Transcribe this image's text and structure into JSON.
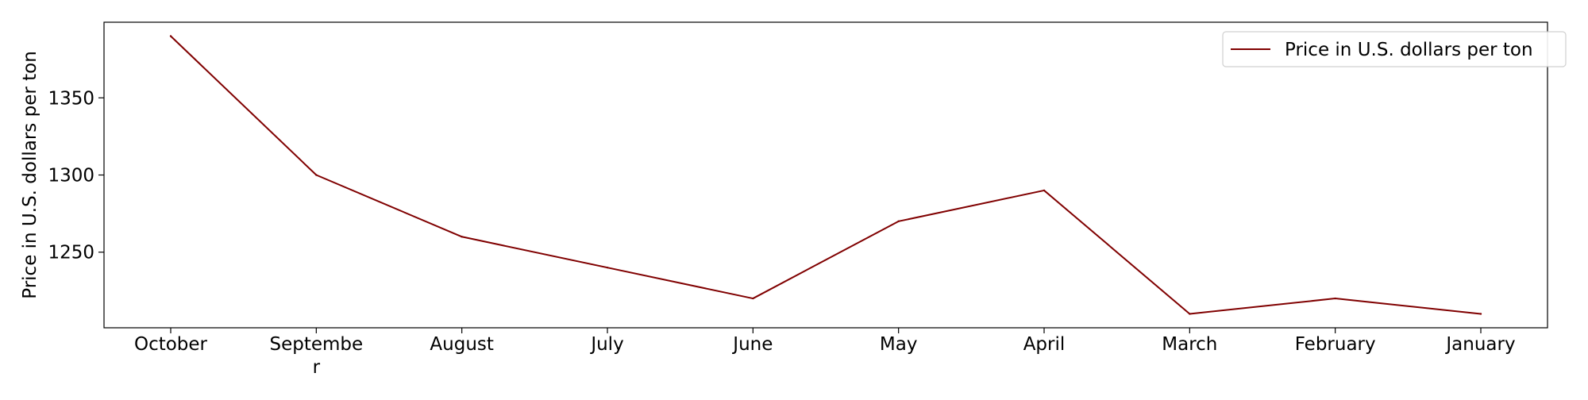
{
  "chart_data": {
    "type": "line",
    "title": "",
    "xlabel": "",
    "ylabel": "Price in U.S. dollars per ton",
    "categories": [
      "October",
      "Septembe\nr",
      "August",
      "July",
      "June",
      "May",
      "April",
      "March",
      "February",
      "January"
    ],
    "yticks": [
      1250,
      1300,
      1350
    ],
    "ylim": [
      1201,
      1399
    ],
    "grid": false,
    "legend_position": "top-right",
    "series": [
      {
        "name": "Price in U.S. dollars per ton",
        "color": "#800000",
        "values": [
          1390,
          1300,
          1260,
          1240,
          1220,
          1270,
          1290,
          1210,
          1220,
          1210
        ]
      }
    ]
  }
}
